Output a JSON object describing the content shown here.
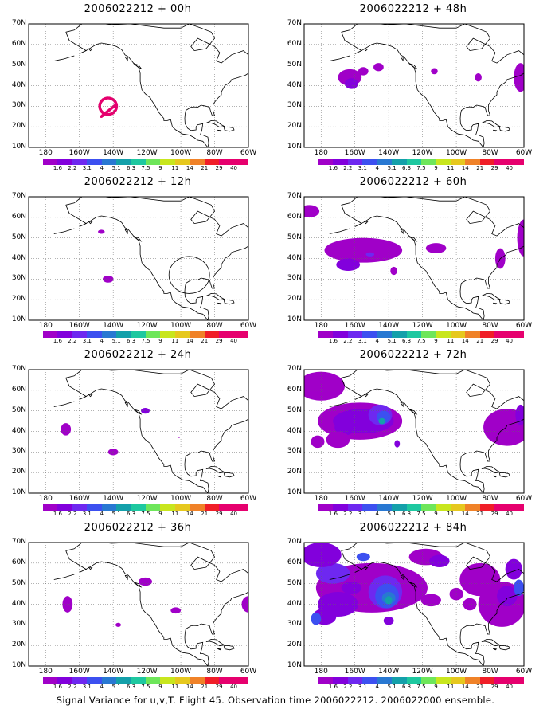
{
  "colorbar": {
    "labels": [
      "1.6",
      "2.2",
      "3.1",
      "4",
      "5.1",
      "6.3",
      "7.5",
      "9",
      "11",
      "14",
      "21",
      "29",
      "40"
    ],
    "colors": [
      "#a000c8",
      "#8200dc",
      "#6e28f0",
      "#3c50f0",
      "#2878d2",
      "#14a0aa",
      "#1ec8a0",
      "#6ee65a",
      "#c8e61e",
      "#e6c81e",
      "#f08228",
      "#f01e28",
      "#e6006e"
    ]
  },
  "axes": {
    "lat_labels": [
      "70N",
      "60N",
      "50N",
      "40N",
      "30N",
      "20N",
      "10N"
    ],
    "lon_labels": [
      "180",
      "160W",
      "140W",
      "120W",
      "100W",
      "80W",
      "60W"
    ]
  },
  "panels": [
    {
      "title": "2006022212 + 00h"
    },
    {
      "title": "2006022212 + 48h"
    },
    {
      "title": "2006022212 + 12h"
    },
    {
      "title": "2006022212 + 60h"
    },
    {
      "title": "2006022212 + 24h"
    },
    {
      "title": "2006022212 + 72h"
    },
    {
      "title": "2006022212 + 36h"
    },
    {
      "title": "2006022212 + 84h"
    }
  ],
  "footer": "Signal Variance for u,v,T. Flight 45. Observation time 2006022212. 2006022000 ensemble."
}
